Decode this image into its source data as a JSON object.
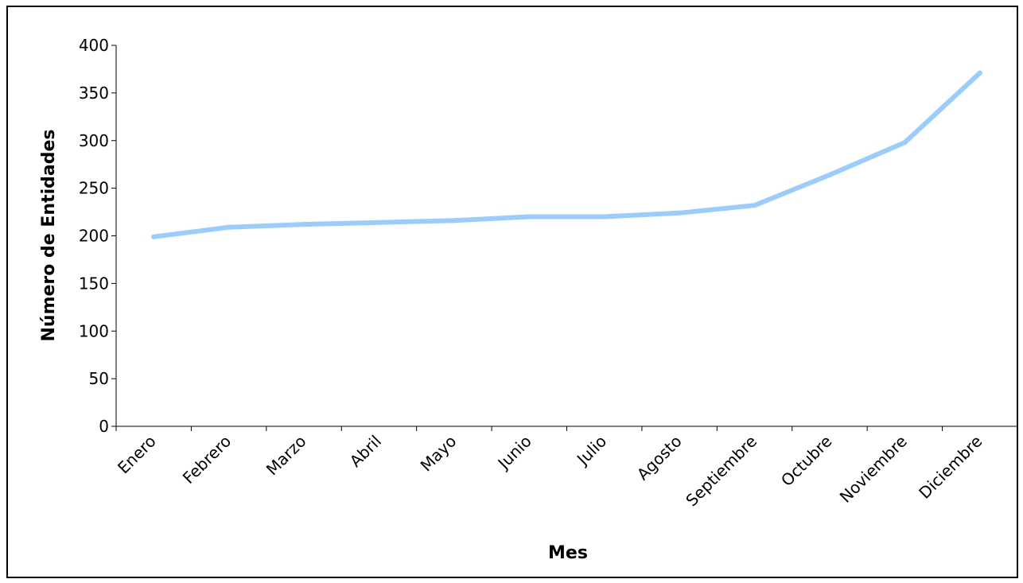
{
  "chart_data": {
    "type": "line",
    "title": "",
    "xlabel": "Mes",
    "ylabel": "Número de Entidades",
    "categories": [
      "Enero",
      "Febrero",
      "Marzo",
      "Abril",
      "Mayo",
      "Junio",
      "Julio",
      "Agosto",
      "Septiembre",
      "Octubre",
      "Noviembre",
      "Diciembre"
    ],
    "series": [
      {
        "values": [
          199,
          209,
          212,
          214,
          216,
          220,
          220,
          224,
          232,
          264,
          298,
          371
        ]
      }
    ],
    "ylim": [
      0,
      400
    ],
    "yticks": [
      0,
      50,
      100,
      150,
      200,
      250,
      300,
      350,
      400
    ],
    "grid": false,
    "legend": "none",
    "colors": {
      "line": "#99ccff",
      "axis": "#000000"
    }
  }
}
